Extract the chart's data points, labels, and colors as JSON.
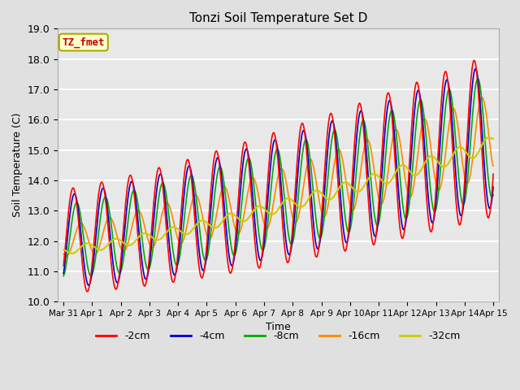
{
  "title": "Tonzi Soil Temperature Set D",
  "xlabel": "Time",
  "ylabel": "Soil Temperature (C)",
  "ylim": [
    10.0,
    19.0
  ],
  "annotation": "TZ_fmet",
  "annotation_bg": "#ffffcc",
  "annotation_border": "#aaaa00",
  "annotation_text_color": "#cc0000",
  "bg_color": "#e0e0e0",
  "plot_bg": "#e8e8e8",
  "line_colors": {
    "-2cm": "#ff0000",
    "-4cm": "#0000cc",
    "-8cm": "#00aa00",
    "-16cm": "#ff8800",
    "-32cm": "#cccc00"
  },
  "tick_labels": [
    "Mar 31",
    "Apr 1",
    "Apr 2",
    "Apr 3",
    "Apr 4",
    "Apr 5",
    "Apr 6",
    "Apr 7",
    "Apr 8",
    "Apr 9",
    "Apr 10",
    "Apr 11",
    "Apr 12",
    "Apr 13",
    "Apr 14",
    "Apr 15"
  ],
  "tick_positions": [
    0,
    1,
    2,
    3,
    4,
    5,
    6,
    7,
    8,
    9,
    10,
    11,
    12,
    13,
    14,
    15
  ],
  "yticks": [
    10.0,
    11.0,
    12.0,
    13.0,
    14.0,
    15.0,
    16.0,
    17.0,
    18.0,
    19.0
  ],
  "legend_labels": [
    "-2cm",
    "-4cm",
    "-8cm",
    "-16cm",
    "-32cm"
  ]
}
